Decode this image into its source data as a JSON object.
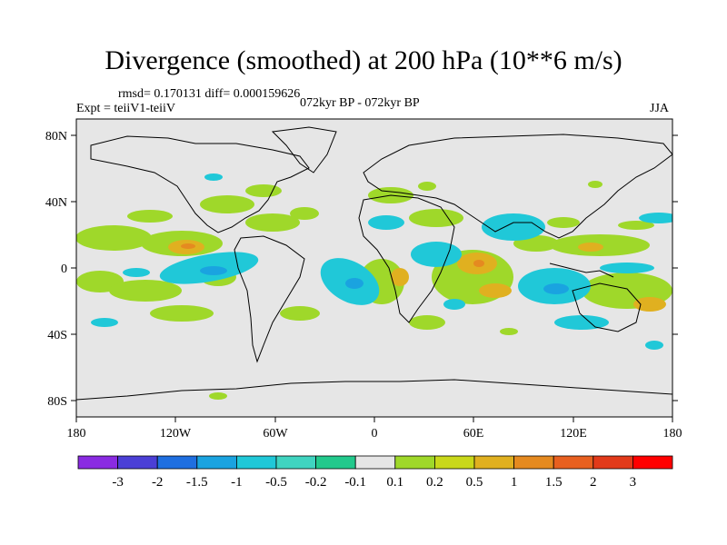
{
  "header": {
    "title": "Divergence (smoothed) at 200 hPa (10**6 m/s)",
    "stats": "rmsd= 0.170131 diff= 0.000159626",
    "experiment": "Expt = teiiV1-teiiV",
    "period": "072kyr BP - 072kyr BP",
    "season": "JJA"
  },
  "map": {
    "lat_ticks": [
      "80N",
      "40N",
      "0",
      "40S",
      "80S"
    ],
    "lon_ticks": [
      "180",
      "120W",
      "60W",
      "0",
      "60E",
      "120E",
      "180"
    ],
    "background_color": "#e6e6e6",
    "coastline_color": "#000000"
  },
  "colorbar": {
    "labels": [
      "-3",
      "-2",
      "-1.5",
      "-1",
      "-0.5",
      "-0.2",
      "-0.1",
      "0.1",
      "0.2",
      "0.5",
      "1",
      "1.5",
      "2",
      "3"
    ],
    "colors": [
      "#8a2be2",
      "#4b3fd6",
      "#1f6fe0",
      "#1aa3e0",
      "#20c8d8",
      "#3fd4c0",
      "#22c98c",
      "#e6e6e6",
      "#9fd82a",
      "#c9d81a",
      "#e0b020",
      "#e58a20",
      "#e86020",
      "#e23a1a",
      "#ff0000"
    ]
  }
}
